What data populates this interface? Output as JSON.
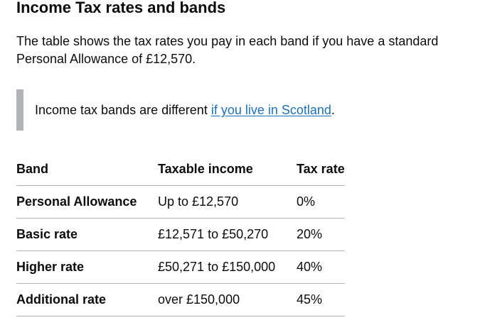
{
  "heading": "Income Tax rates and bands",
  "intro": "The table shows the tax rates you pay in each band if you have a standard Personal Allowance of £12,570.",
  "inset": {
    "text_before": "Income tax bands are different ",
    "link_text": "if you live in Scotland",
    "text_after": "."
  },
  "table": {
    "headers": [
      "Band",
      "Taxable income",
      "Tax rate"
    ],
    "rows": [
      [
        "Personal Allowance",
        "Up to £12,570",
        "0%"
      ],
      [
        "Basic rate",
        "£12,571 to £50,270",
        "20%"
      ],
      [
        "Higher rate",
        "£50,271 to £150,000",
        "40%"
      ],
      [
        "Additional rate",
        "over £150,000",
        "45%"
      ]
    ]
  },
  "colors": {
    "text": "#0b0c0c",
    "link": "#1d70b8",
    "border": "#b1b4b6",
    "inset_border": "#b1b4b6"
  }
}
